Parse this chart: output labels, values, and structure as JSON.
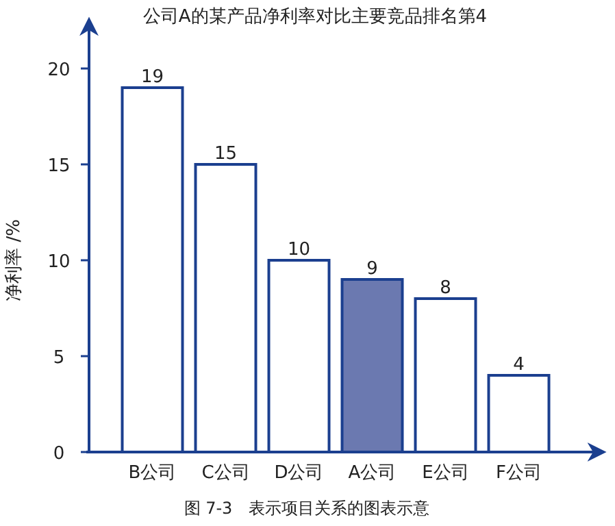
{
  "chart_data": {
    "type": "bar",
    "title": "公司A的某产品净利率对比主要竞品排名第4",
    "ylabel": "净利率 /%",
    "categories": [
      "B公司",
      "C公司",
      "D公司",
      "A公司",
      "E公司",
      "F公司"
    ],
    "values": [
      19,
      15,
      10,
      9,
      8,
      4
    ],
    "colors": [
      "#ffffff",
      "#ffffff",
      "#ffffff",
      "#6b79b0",
      "#ffffff",
      "#ffffff"
    ],
    "ylim": [
      0,
      22.5
    ],
    "yticks": [
      0,
      5,
      10,
      15,
      20
    ],
    "data_labels": true,
    "annotations": [
      "图 7-3　表示项目关系的图表示意"
    ]
  }
}
